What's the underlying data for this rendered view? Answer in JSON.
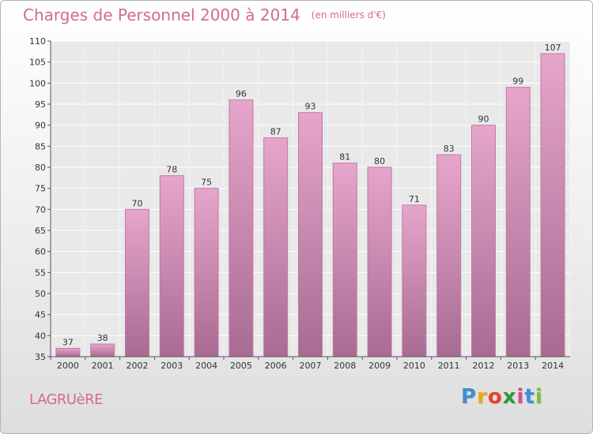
{
  "title": "Charges de Personnel 2000 à 2014",
  "unit": "(en milliers d'€)",
  "town": "LAGRUèRE",
  "logo": {
    "text": "Proxiti",
    "letters": [
      "P",
      "r",
      "o",
      "x",
      "i",
      "t",
      "i"
    ],
    "colors": [
      "#3a8fd8",
      "#f0a500",
      "#e8412c",
      "#2a9a3c",
      "#d94a8c",
      "#3a8fd8",
      "#7fbf2a"
    ]
  },
  "colors": {
    "bar_top": "#e6a6cb",
    "bar_bottom": "#a96a93",
    "bar_edge": "#c07aa4",
    "accent": "#d2699a"
  },
  "chart_data": {
    "type": "bar",
    "categories": [
      "2000",
      "2001",
      "2002",
      "2003",
      "2004",
      "2005",
      "2006",
      "2007",
      "2008",
      "2009",
      "2010",
      "2011",
      "2012",
      "2013",
      "2014"
    ],
    "values": [
      37,
      38,
      70,
      78,
      75,
      96,
      87,
      93,
      81,
      80,
      71,
      83,
      90,
      99,
      107
    ],
    "ylim": [
      35,
      110
    ],
    "yticks": [
      35,
      40,
      45,
      50,
      55,
      60,
      65,
      70,
      75,
      80,
      85,
      90,
      95,
      100,
      105,
      110
    ],
    "grid": true
  }
}
